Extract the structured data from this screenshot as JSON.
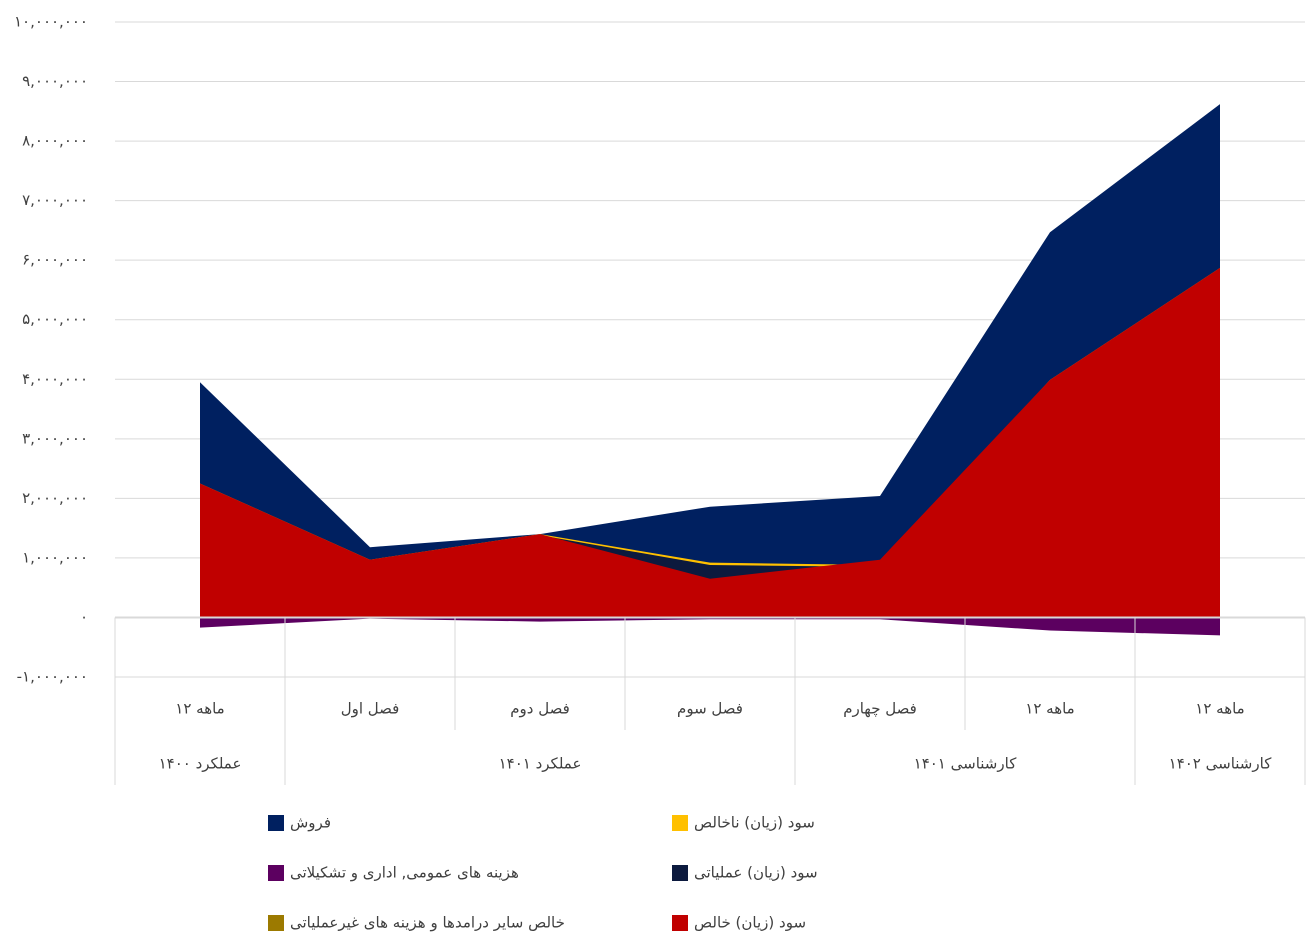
{
  "chart_data": {
    "type": "area",
    "categories": [
      "۱۲ ماهه",
      "فصل اول",
      "فصل دوم",
      "فصل سوم",
      "فصل چهارم",
      "۱۲ ماهه",
      "۱۲ ماهه"
    ],
    "groups": [
      "عملکرد ۱۴۰۰",
      "عملکرد ۱۴۰۱",
      "عملکرد ۱۴۰۱",
      "عملکرد ۱۴۰۱",
      "کارشناسی ۱۴۰۱",
      "کارشناسی ۱۴۰۱",
      "کارشناسی ۱۴۰۲"
    ],
    "series": [
      {
        "name": "فروش",
        "color": "#002060",
        "values": [
          3950000,
          1180000,
          1400000,
          1860000,
          2040000,
          6470000,
          8620000
        ]
      },
      {
        "name": "سود (زیان) ناخالص",
        "color": "#ffc000",
        "values": [
          2250000,
          970000,
          1400000,
          920000,
          880000,
          3990000,
          5870000
        ]
      },
      {
        "name": "هزینه های عمومی, اداری و تشکیلاتی",
        "color": "#5c0060",
        "values": [
          -170000,
          -20000,
          -70000,
          -30000,
          -30000,
          -220000,
          -300000
        ]
      },
      {
        "name": "سود (زیان) عملیاتی",
        "color": "#0c1a3e",
        "values": [
          2100000,
          950000,
          1380000,
          880000,
          850000,
          3800000,
          5600000
        ]
      },
      {
        "name": "خالص سایر درامدها و هزینه های غیرعملیاتی",
        "color": "#9c7a00",
        "values": [
          50000,
          20000,
          20000,
          20000,
          30000,
          100000,
          150000
        ]
      },
      {
        "name": "سود (زیان) خالص",
        "color": "#c00000",
        "values": [
          2250000,
          970000,
          1400000,
          650000,
          970000,
          3990000,
          5870000
        ]
      }
    ],
    "ylim": [
      -1000000,
      10000000
    ],
    "yticks": [
      {
        "value": -1000000,
        "label": "-۱,۰۰۰,۰۰۰"
      },
      {
        "value": 0,
        "label": "۰"
      },
      {
        "value": 1000000,
        "label": "۱,۰۰۰,۰۰۰"
      },
      {
        "value": 2000000,
        "label": "۲,۰۰۰,۰۰۰"
      },
      {
        "value": 3000000,
        "label": "۳,۰۰۰,۰۰۰"
      },
      {
        "value": 4000000,
        "label": "۴,۰۰۰,۰۰۰"
      },
      {
        "value": 5000000,
        "label": "۵,۰۰۰,۰۰۰"
      },
      {
        "value": 6000000,
        "label": "۶,۰۰۰,۰۰۰"
      },
      {
        "value": 7000000,
        "label": "۷,۰۰۰,۰۰۰"
      },
      {
        "value": 8000000,
        "label": "۸,۰۰۰,۰۰۰"
      },
      {
        "value": 9000000,
        "label": "۹,۰۰۰,۰۰۰"
      },
      {
        "value": 10000000,
        "label": "۱۰,۰۰۰,۰۰۰"
      }
    ],
    "grid": true
  }
}
